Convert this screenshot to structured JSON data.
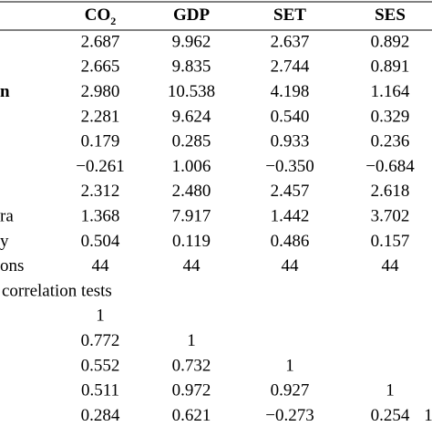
{
  "table": {
    "header": [
      {
        "text": "CO",
        "sub": "2"
      },
      {
        "text": "GDP"
      },
      {
        "text": "SET"
      },
      {
        "text": "SES"
      }
    ],
    "rows": [
      {
        "cells": [
          "2.687",
          "9.962",
          "2.637",
          "0.892"
        ]
      },
      {
        "cells": [
          "2.665",
          "9.835",
          "2.744",
          "0.891"
        ]
      },
      {
        "label": "n",
        "label_bold": true,
        "cells": [
          "2.980",
          "10.538",
          "4.198",
          "1.164"
        ]
      },
      {
        "cells": [
          "2.281",
          "9.624",
          "0.540",
          "0.329"
        ]
      },
      {
        "cells": [
          "0.179",
          "0.285",
          "0.933",
          "0.236"
        ]
      },
      {
        "cells": [
          "−0.261",
          "1.006",
          "−0.350",
          "−0.684"
        ]
      },
      {
        "cells": [
          "2.312",
          "2.480",
          "2.457",
          "2.618"
        ]
      },
      {
        "label": "ra",
        "cells": [
          "1.368",
          "7.917",
          "1.442",
          "3.702"
        ]
      },
      {
        "label": "y",
        "cells": [
          "0.504",
          "0.119",
          "0.486",
          "0.157"
        ]
      },
      {
        "label": "ons",
        "cells": [
          "44",
          "44",
          "44",
          "44"
        ]
      }
    ],
    "section": "correlation tests",
    "correlation_rows": [
      [
        "1"
      ],
      [
        "0.772",
        "1"
      ],
      [
        "0.552",
        "0.732",
        "1"
      ],
      [
        "0.511",
        "0.972",
        "0.927",
        "1"
      ],
      [
        "0.284",
        "0.621",
        "−0.273",
        "0.254",
        "1"
      ]
    ]
  }
}
